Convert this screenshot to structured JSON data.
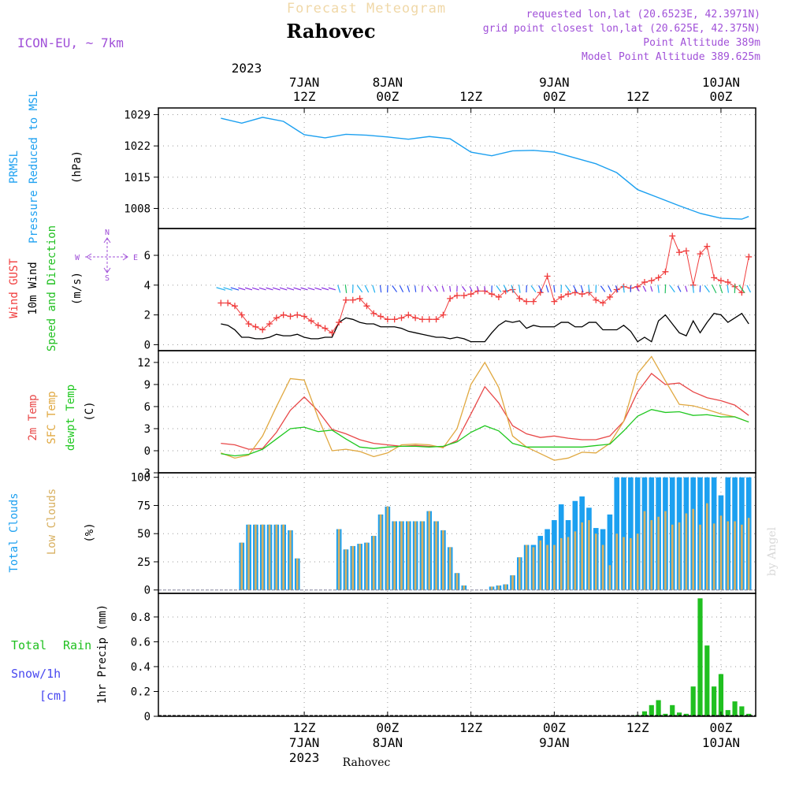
{
  "header": {
    "product": "Forecast Meteogram",
    "location": "Rahovec",
    "model": "ICON-EU, ~ 7km",
    "requested": "requested lon,lat (20.6523E, 42.3971N)",
    "grid_point": "grid point closest lon,lat (20.625E, 42.375N)",
    "point_altitude": "Point Altitude 389m",
    "model_altitude": "Model Point Altitude 389.625m",
    "footer_location": "Rahovec",
    "watermark": "by Angel"
  },
  "time_axis": {
    "top_year": "2023",
    "ticks": [
      {
        "hour": 12,
        "top_date": "7JAN",
        "top_time": "12Z",
        "bottom_time": "12Z",
        "bottom_date": "7JAN",
        "bottom_year": "2023"
      },
      {
        "hour": 24,
        "top_date": "8JAN",
        "top_time": "00Z",
        "bottom_time": "00Z",
        "bottom_date": "8JAN",
        "bottom_year": ""
      },
      {
        "hour": 36,
        "top_date": "",
        "top_time": "12Z",
        "bottom_time": "12Z",
        "bottom_date": "",
        "bottom_year": ""
      },
      {
        "hour": 48,
        "top_date": "9JAN",
        "top_time": "00Z",
        "bottom_time": "00Z",
        "bottom_date": "9JAN",
        "bottom_year": ""
      },
      {
        "hour": 60,
        "top_date": "",
        "top_time": "12Z",
        "bottom_time": "12Z",
        "bottom_date": "",
        "bottom_year": ""
      },
      {
        "hour": 72,
        "top_date": "10JAN",
        "top_time": "00Z",
        "bottom_time": "00Z",
        "bottom_date": "10JAN",
        "bottom_year": ""
      }
    ]
  },
  "colors": {
    "pressure": "#1ca0f0",
    "gust": "#f03c3c",
    "wind": "#000000",
    "temp2m": "#e84848",
    "sfc": "#e0a840",
    "dewpt": "#20c820",
    "total_cloud": "#1ca0f0",
    "low_cloud": "#d8b060",
    "rain": "#20c020",
    "snow": "#4848f0",
    "compass": "#a050d8",
    "header": "#a050d8",
    "title_faded": "#f0d8a8"
  },
  "chart_data": [
    {
      "type": "line",
      "panel": "pressure",
      "ylabel_lines": [
        "PRMSL",
        "Pressure Reduced to MSL"
      ],
      "unit": "(hPa)",
      "yticks": [
        1008,
        1015,
        1022,
        1029
      ],
      "ylim": [
        1003.5,
        1030.5
      ],
      "x": [
        0,
        3,
        6,
        9,
        12,
        15,
        18,
        21,
        24,
        27,
        30,
        33,
        36,
        39,
        42,
        45,
        48,
        51,
        54,
        57,
        60,
        63,
        66,
        69,
        72,
        75,
        76
      ],
      "series": [
        {
          "name": "PRMSL",
          "values": [
            1028.2,
            1027.1,
            1028.4,
            1027.5,
            1024.5,
            1023.8,
            1024.6,
            1024.4,
            1024.0,
            1023.5,
            1024.1,
            1023.6,
            1020.6,
            1019.8,
            1020.9,
            1021.0,
            1020.6,
            1019.3,
            1018.0,
            1016.0,
            1012.2,
            1010.4,
            1008.6,
            1006.9,
            1005.8,
            1005.6,
            1006.2
          ]
        }
      ]
    },
    {
      "type": "line",
      "panel": "wind",
      "ylabel_lines": [
        "Wind GUST",
        "10m Wind",
        "Speed and Direction"
      ],
      "unit": "(m/s)",
      "compass": {
        "n": "N",
        "s": "S",
        "w": "W",
        "e": "E"
      },
      "yticks": [
        0,
        2,
        4,
        6
      ],
      "ylim": [
        -0.4,
        7.8
      ],
      "x": [
        0,
        1,
        2,
        3,
        4,
        5,
        6,
        7,
        8,
        9,
        10,
        11,
        12,
        13,
        14,
        15,
        16,
        17,
        18,
        19,
        20,
        21,
        22,
        23,
        24,
        25,
        26,
        27,
        28,
        29,
        30,
        31,
        32,
        33,
        34,
        35,
        36,
        37,
        38,
        39,
        40,
        41,
        42,
        43,
        44,
        45,
        46,
        47,
        48,
        49,
        50,
        51,
        52,
        53,
        54,
        55,
        56,
        57,
        58,
        59,
        60,
        61,
        62,
        63,
        64,
        65,
        66,
        67,
        68,
        69,
        70,
        71,
        72,
        73,
        74,
        75,
        76
      ],
      "series": [
        {
          "name": "Wind GUST",
          "values": [
            2.8,
            2.8,
            2.6,
            2.0,
            1.4,
            1.2,
            1.0,
            1.4,
            1.8,
            2.0,
            1.9,
            2.0,
            1.9,
            1.6,
            1.3,
            1.1,
            0.8,
            1.5,
            3.0,
            3.0,
            3.1,
            2.6,
            2.1,
            1.9,
            1.7,
            1.7,
            1.8,
            2.0,
            1.8,
            1.7,
            1.7,
            1.7,
            2.0,
            3.1,
            3.3,
            3.3,
            3.4,
            3.6,
            3.6,
            3.4,
            3.2,
            3.6,
            3.7,
            3.1,
            2.9,
            2.9,
            3.5,
            4.6,
            2.9,
            3.2,
            3.4,
            3.5,
            3.4,
            3.5,
            3.0,
            2.8,
            3.2,
            3.7,
            3.9,
            3.8,
            3.9,
            4.2,
            4.3,
            4.5,
            4.9,
            7.3,
            6.2,
            6.3,
            4.0,
            6.1,
            6.6,
            4.5,
            4.3,
            4.2,
            3.9,
            3.5,
            5.9
          ]
        },
        {
          "name": "10m Wind",
          "values": [
            1.4,
            1.3,
            1.0,
            0.5,
            0.5,
            0.4,
            0.4,
            0.5,
            0.7,
            0.6,
            0.6,
            0.7,
            0.5,
            0.4,
            0.4,
            0.5,
            0.5,
            1.5,
            1.8,
            1.7,
            1.5,
            1.4,
            1.4,
            1.2,
            1.2,
            1.2,
            1.1,
            0.9,
            0.8,
            0.7,
            0.6,
            0.5,
            0.5,
            0.4,
            0.5,
            0.4,
            0.2,
            0.2,
            0.2,
            0.8,
            1.3,
            1.6,
            1.5,
            1.6,
            1.1,
            1.3,
            1.2,
            1.2,
            1.2,
            1.5,
            1.5,
            1.2,
            1.2,
            1.5,
            1.5,
            1.0,
            1.0,
            1.0,
            1.3,
            0.9,
            0.2,
            0.5,
            0.2,
            1.6,
            2.0,
            1.4,
            0.8,
            0.6,
            1.6,
            0.8,
            1.5,
            2.1,
            2.0,
            1.5,
            1.8,
            2.1,
            1.4
          ]
        }
      ]
    },
    {
      "type": "line",
      "panel": "temperature",
      "ylabel_lines": [
        "2m Temp",
        "SFC Temp",
        "dewpt Temp"
      ],
      "unit": "(C)",
      "yticks": [
        -3,
        0,
        3,
        6,
        9,
        12
      ],
      "ylim": [
        -3,
        13.6
      ],
      "x": [
        0,
        2,
        4,
        6,
        8,
        10,
        12,
        14,
        16,
        18,
        20,
        22,
        24,
        26,
        28,
        30,
        32,
        34,
        36,
        38,
        40,
        42,
        44,
        46,
        48,
        50,
        52,
        54,
        56,
        58,
        60,
        62,
        64,
        66,
        68,
        70,
        72,
        74,
        76
      ],
      "series": [
        {
          "name": "2m Temp",
          "values": [
            1.0,
            0.8,
            0.2,
            0.3,
            2.5,
            5.5,
            7.3,
            5.4,
            2.9,
            2.3,
            1.5,
            1.0,
            0.8,
            0.6,
            0.7,
            0.6,
            0.5,
            1.4,
            5.0,
            8.7,
            6.5,
            3.4,
            2.3,
            1.8,
            2.0,
            1.7,
            1.5,
            1.5,
            2.0,
            4.0,
            8.0,
            10.5,
            9.0,
            9.2,
            8.0,
            7.2,
            6.8,
            6.2,
            4.8
          ]
        },
        {
          "name": "SFC Temp",
          "values": [
            -0.3,
            -1.0,
            -0.6,
            2.0,
            6.0,
            9.8,
            9.6,
            4.5,
            0.0,
            0.2,
            -0.1,
            -0.8,
            -0.3,
            0.8,
            0.9,
            0.8,
            0.4,
            3.0,
            9.0,
            12.0,
            8.6,
            2.0,
            0.5,
            -0.4,
            -1.3,
            -1.0,
            -0.2,
            -0.3,
            1.0,
            4.0,
            10.5,
            12.8,
            9.5,
            6.3,
            6.1,
            5.6,
            5.0,
            4.6,
            3.9
          ]
        },
        {
          "name": "dewpt Temp",
          "values": [
            -0.4,
            -0.7,
            -0.5,
            0.2,
            1.6,
            3.0,
            3.2,
            2.6,
            2.8,
            1.6,
            0.5,
            0.3,
            0.5,
            0.6,
            0.6,
            0.5,
            0.6,
            1.2,
            2.5,
            3.4,
            2.7,
            1.0,
            0.5,
            0.5,
            0.5,
            0.5,
            0.5,
            0.7,
            0.9,
            2.7,
            4.7,
            5.6,
            5.2,
            5.3,
            4.8,
            4.9,
            4.6,
            4.6,
            3.9
          ]
        }
      ]
    },
    {
      "type": "bar",
      "panel": "clouds",
      "ylabel_lines": [
        "Total Clouds",
        "Low Clouds"
      ],
      "unit": "(%)",
      "yticks": [
        0,
        25,
        50,
        75,
        100
      ],
      "ylim": [
        -3,
        104
      ],
      "x": [
        0,
        1,
        2,
        3,
        4,
        5,
        6,
        7,
        8,
        9,
        10,
        11,
        12,
        13,
        14,
        15,
        16,
        17,
        18,
        19,
        20,
        21,
        22,
        23,
        24,
        25,
        26,
        27,
        28,
        29,
        30,
        31,
        32,
        33,
        34,
        35,
        36,
        37,
        38,
        39,
        40,
        41,
        42,
        43,
        44,
        45,
        46,
        47,
        48,
        49,
        50,
        51,
        52,
        53,
        54,
        55,
        56,
        57,
        58,
        59,
        60,
        61,
        62,
        63,
        64,
        65,
        66,
        67,
        68,
        69,
        70,
        71,
        72,
        73,
        74,
        75,
        76
      ],
      "series": [
        {
          "name": "Total Clouds",
          "values": [
            0,
            0,
            0,
            42,
            58,
            58,
            58,
            58,
            58,
            58,
            53,
            28,
            0,
            0,
            0,
            0,
            0,
            54,
            36,
            39,
            41,
            42,
            48,
            67,
            74,
            61,
            61,
            61,
            61,
            61,
            70,
            61,
            53,
            38,
            15,
            4,
            0,
            0,
            0,
            3,
            4,
            5,
            13,
            29,
            40,
            40,
            48,
            54,
            62,
            76,
            62,
            79,
            83,
            73,
            55,
            54,
            67,
            100,
            100,
            100,
            100,
            100,
            100,
            100,
            100,
            100,
            100,
            100,
            100,
            100,
            100,
            100,
            84,
            100,
            100,
            100,
            100
          ]
        },
        {
          "name": "Low Clouds",
          "values": [
            0,
            0,
            0,
            42,
            58,
            58,
            58,
            58,
            58,
            58,
            53,
            28,
            0,
            0,
            0,
            0,
            0,
            54,
            36,
            39,
            41,
            42,
            48,
            67,
            74,
            61,
            61,
            61,
            61,
            61,
            70,
            61,
            53,
            38,
            15,
            4,
            0,
            0,
            0,
            3,
            4,
            5,
            13,
            29,
            40,
            38,
            44,
            40,
            40,
            46,
            47,
            52,
            60,
            62,
            50,
            40,
            22,
            50,
            47,
            46,
            50,
            70,
            62,
            65,
            70,
            58,
            60,
            68,
            72,
            58,
            77,
            59,
            66,
            61,
            61,
            58,
            64
          ]
        }
      ]
    },
    {
      "type": "bar",
      "panel": "precip",
      "ylabel_lines": [
        "1hr Precip (mm)"
      ],
      "legend": {
        "rain_total": "Total",
        "rain_word": "Rain",
        "snow": "Snow/1h",
        "snow_unit": "[cm]"
      },
      "yticks": [
        0,
        0.2,
        0.4,
        0.6,
        0.8
      ],
      "yticklabels": [
        "0",
        "0.2",
        "0.4",
        "0.6",
        "0.8"
      ],
      "ylim": [
        0,
        0.99
      ],
      "x": [
        60,
        61,
        62,
        63,
        64,
        65,
        66,
        67,
        68,
        69,
        70,
        71,
        72,
        73,
        74,
        75,
        76
      ],
      "series": [
        {
          "name": "Total Rain",
          "values": [
            0.01,
            0.04,
            0.09,
            0.13,
            0.02,
            0.09,
            0.03,
            0.02,
            0.24,
            0.95,
            0.57,
            0.24,
            0.34,
            0.05,
            0.12,
            0.08,
            0.02
          ]
        }
      ]
    }
  ]
}
